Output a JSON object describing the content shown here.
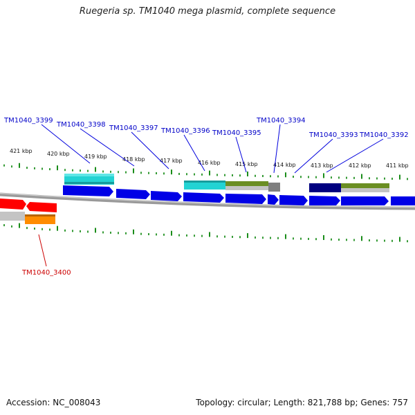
{
  "title": "Ruegeria sp. TM1040 mega plasmid, complete sequence",
  "footer": {
    "accession": "Accession: NC_008043",
    "summary": "Topology: circular; Length: 821,788 bp; Genes: 757"
  },
  "colors": {
    "forward_gene": "#0000e6",
    "reverse_gene": "#ff0000",
    "rna_cyan": "#22d3d3",
    "olive": "#6b8e23",
    "gray": "#8c8c8c",
    "navy": "#000080",
    "orange": "#ff8c00",
    "tick": "#008000",
    "label_forward": "#0000c8",
    "label_reverse": "#cc0000",
    "backbone": "#8a8a8a"
  },
  "kbp_labels": [
    "421 kbp",
    "420 kbp",
    "419 kbp",
    "418 kbp",
    "417 kbp",
    "416 kbp",
    "415 kbp",
    "414 kbp",
    "413 kbp",
    "412 kbp",
    "411 kbp"
  ],
  "gene_labels": [
    {
      "name": "TM1040_3399",
      "strand": "forward"
    },
    {
      "name": "TM1040_3398",
      "strand": "forward"
    },
    {
      "name": "TM1040_3397",
      "strand": "forward"
    },
    {
      "name": "TM1040_3396",
      "strand": "forward"
    },
    {
      "name": "TM1040_3395",
      "strand": "forward"
    },
    {
      "name": "TM1040_3394",
      "strand": "forward"
    },
    {
      "name": "TM1040_3393",
      "strand": "forward"
    },
    {
      "name": "TM1040_3392",
      "strand": "forward"
    },
    {
      "name": "TM1040_3400",
      "strand": "reverse"
    }
  ]
}
